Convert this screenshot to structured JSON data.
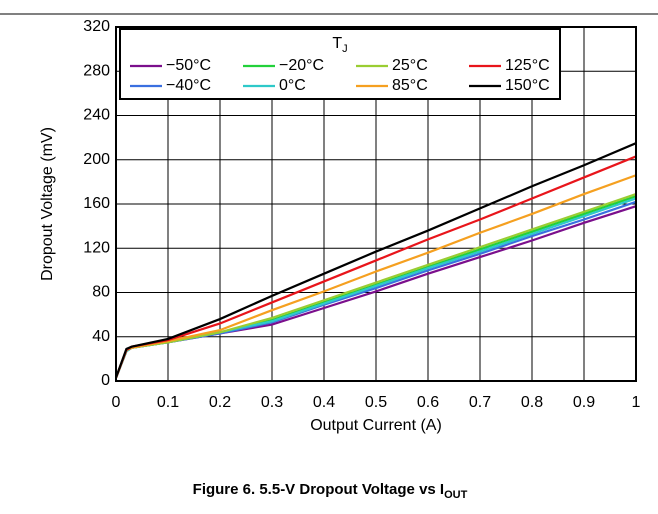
{
  "chart_data": {
    "type": "line",
    "caption": "Figure 6. 5.5-V Dropout Voltage vs I",
    "caption_sub": "OUT",
    "x_label": "Output Current (A)",
    "y_label": "Dropout Voltage (mV)",
    "legend_title": "T",
    "legend_title_sub": "J",
    "x": [
      0,
      0.02,
      0.03,
      0.1,
      0.2,
      0.3,
      0.4,
      0.5,
      0.6,
      0.7,
      0.8,
      0.9,
      1
    ],
    "series": [
      {
        "name": "−50°C",
        "color": "#7b0f8c",
        "values": [
          3,
          27,
          30,
          35,
          43,
          51,
          66,
          81,
          97,
          112,
          127,
          143,
          158
        ]
      },
      {
        "name": "−40°C",
        "color": "#3a6fe0",
        "values": [
          3,
          27,
          30,
          35,
          43,
          53,
          69,
          84,
          100,
          115,
          131,
          146,
          162
        ]
      },
      {
        "name": "−20°C",
        "color": "#22d13a",
        "values": [
          3,
          27,
          30,
          35,
          44,
          55,
          71,
          87,
          103,
          119,
          135,
          151,
          167
        ]
      },
      {
        "name": "0°C",
        "color": "#2ec9c9",
        "values": [
          3,
          27,
          30,
          35,
          44,
          54,
          70,
          86,
          102,
          117,
          133,
          149,
          165
        ]
      },
      {
        "name": "25°C",
        "color": "#9acd32",
        "values": [
          3,
          28,
          30,
          35,
          44,
          57,
          73,
          89,
          105,
          121,
          137,
          153,
          169
        ]
      },
      {
        "name": "85°C",
        "color": "#f5a020",
        "values": [
          3,
          28,
          30,
          36,
          46,
          64,
          81,
          99,
          116,
          134,
          151,
          169,
          186
        ]
      },
      {
        "name": "125°C",
        "color": "#e8151b",
        "values": [
          3,
          28,
          31,
          37,
          52,
          71,
          90,
          109,
          128,
          146,
          165,
          184,
          203
        ]
      },
      {
        "name": "150°C",
        "color": "#000000",
        "values": [
          3,
          29,
          31,
          38,
          56,
          77,
          97,
          117,
          136,
          156,
          176,
          195,
          215
        ]
      }
    ],
    "legend_order": [
      0,
      2,
      4,
      6,
      1,
      3,
      5,
      7
    ],
    "xlim": [
      0,
      1
    ],
    "xticks": [
      0,
      0.1,
      0.2,
      0.3,
      0.4,
      0.5,
      0.6,
      0.7,
      0.8,
      0.9,
      1
    ],
    "ylim": [
      0,
      320
    ],
    "yticks": [
      0,
      40,
      80,
      120,
      160,
      200,
      240,
      280,
      320
    ],
    "grid": true
  }
}
